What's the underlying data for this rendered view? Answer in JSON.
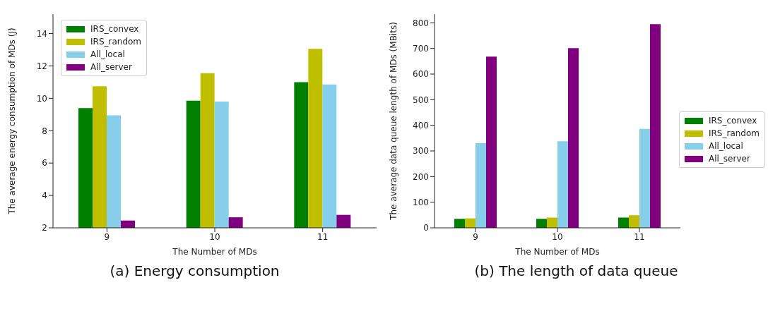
{
  "chart_data": [
    {
      "type": "bar",
      "title": "(a) Energy consumption",
      "xlabel": "The Number of MDs",
      "ylabel": "The average energy consumption of MDs (J)",
      "categories": [
        "9",
        "10",
        "11"
      ],
      "series": [
        {
          "name": "IRS_convex",
          "color": "#008000",
          "values": [
            9.4,
            9.85,
            11.0
          ]
        },
        {
          "name": "IRS_random",
          "color": "#bfbf00",
          "values": [
            10.75,
            11.55,
            13.05
          ]
        },
        {
          "name": "All_local",
          "color": "#87ceeb",
          "values": [
            8.95,
            9.8,
            10.85
          ]
        },
        {
          "name": "All_server",
          "color": "#800080",
          "values": [
            2.45,
            2.65,
            2.8
          ]
        }
      ],
      "ylim": [
        2,
        15.2
      ],
      "yticks": [
        2,
        4,
        6,
        8,
        10,
        12,
        14
      ],
      "legend": "top left"
    },
    {
      "type": "bar",
      "title": "(b) The length of data queue",
      "xlabel": "The Number of MDs",
      "ylabel": "The average data queue length of MDs (MBits)",
      "categories": [
        "9",
        "10",
        "11"
      ],
      "series": [
        {
          "name": "IRS_convex",
          "color": "#008000",
          "values": [
            35,
            35,
            40
          ]
        },
        {
          "name": "IRS_random",
          "color": "#bfbf00",
          "values": [
            37,
            40,
            49
          ]
        },
        {
          "name": "All_local",
          "color": "#87ceeb",
          "values": [
            330,
            338,
            386
          ]
        },
        {
          "name": "All_server",
          "color": "#800080",
          "values": [
            668,
            701,
            795
          ]
        }
      ],
      "ylim": [
        0,
        834
      ],
      "yticks": [
        0,
        100,
        200,
        300,
        400,
        500,
        600,
        700,
        800
      ],
      "legend": "right"
    }
  ]
}
